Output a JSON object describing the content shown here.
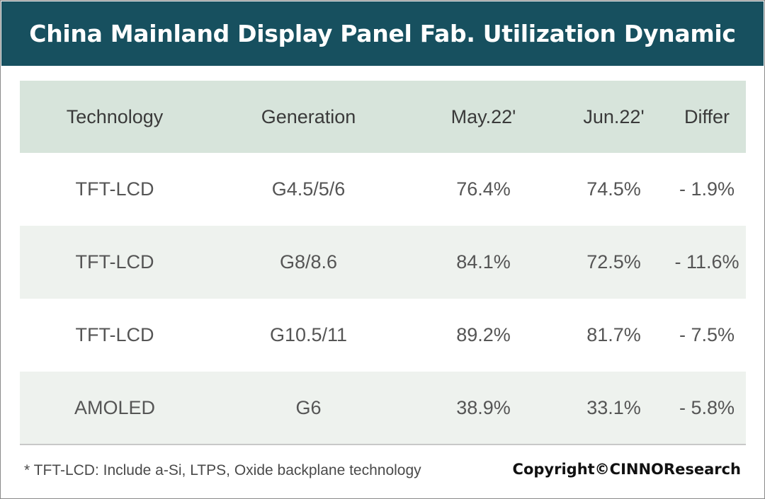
{
  "title": "China Mainland Display Panel Fab. Utilization Dynamic",
  "colors": {
    "title_bar": "#17505f",
    "header_row": "#d7e4db",
    "alt_row": "#eef2ee"
  },
  "chart_data": {
    "type": "table",
    "title": "China Mainland Display Panel Fab. Utilization Dynamic",
    "columns": [
      "Technology",
      "Generation",
      "May.22'",
      "Jun.22'",
      "Differ"
    ],
    "rows": [
      [
        "TFT-LCD",
        "G4.5/5/6",
        "76.4%",
        "74.5%",
        "- 1.9%"
      ],
      [
        "TFT-LCD",
        "G8/8.6",
        "84.1%",
        "72.5%",
        "- 11.6%"
      ],
      [
        "TFT-LCD",
        "G10.5/11",
        "89.2%",
        "81.7%",
        "- 7.5%"
      ],
      [
        "AMOLED",
        "G6",
        "38.9%",
        "33.1%",
        "- 5.8%"
      ]
    ]
  },
  "footnote": "* TFT-LCD: Include a-Si, LTPS, Oxide backplane technology",
  "copyright": "Copyright©CINNOResearch"
}
